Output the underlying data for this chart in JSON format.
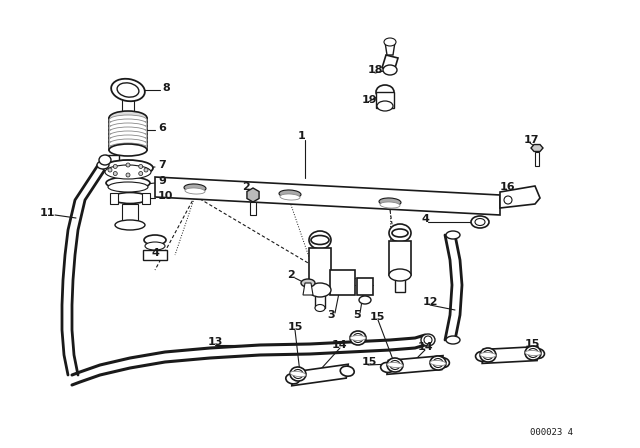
{
  "bg_color": "#ffffff",
  "line_color": "#1a1a1a",
  "diagram_code": "000023 4",
  "figsize": [
    6.4,
    4.48
  ],
  "dpi": 100
}
